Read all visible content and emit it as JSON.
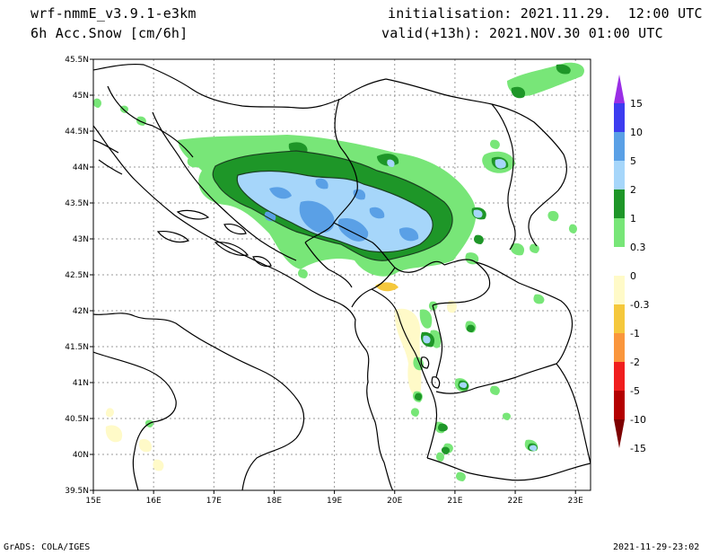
{
  "header": {
    "model": "wrf-nmmE_v3.9.1-e3km",
    "field": "6h Acc.Snow [cm/6h]",
    "init": "initialisation: 2021.11.29.  12:00 UTC",
    "valid": "valid(+13h): 2021.NOV.30 01:00 UTC"
  },
  "map": {
    "lon_range": [
      15,
      23.25
    ],
    "lat_range": [
      39.5,
      45.5
    ],
    "lon_ticks": [
      "15E",
      "16E",
      "17E",
      "18E",
      "19E",
      "20E",
      "21E",
      "22E",
      "23E"
    ],
    "lat_ticks": [
      "45.5N",
      "45N",
      "44.5N",
      "44N",
      "43.5N",
      "43N",
      "42.5N",
      "42N",
      "41.5N",
      "41N",
      "40.5N",
      "40N",
      "39.5N"
    ],
    "grid": true
  },
  "legend": {
    "levels": [
      "15",
      "10",
      "5",
      "2",
      "1",
      "0.3",
      "0",
      "-0.3",
      "-1",
      "-2",
      "-5",
      "-10",
      "-15"
    ],
    "colors": [
      "#9a2ee6",
      "#3c3cf0",
      "#5aa0e6",
      "#a6d6fa",
      "#1e9628",
      "#78e678",
      "#ffffff",
      "#fffac8",
      "#f5c83c",
      "#fa963c",
      "#f01e1e",
      "#b40000",
      "#7d0000"
    ]
  },
  "footer": {
    "left": "GrADS: COLA/IGES",
    "right": "2021-11-29-23:02"
  }
}
